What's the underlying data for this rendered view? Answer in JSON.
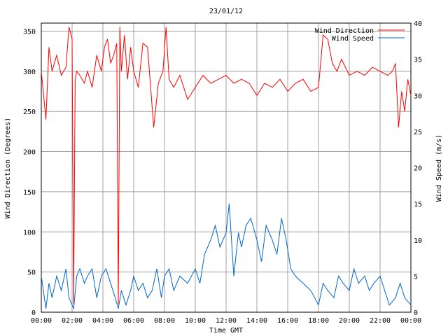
{
  "chart_data": {
    "type": "line",
    "title": "23/01/12",
    "xlabel": "Time GMT",
    "ylabel": "Wind Direction (Degrees)",
    "y2label": "Wind Speed (m/s)",
    "x_ticks": [
      "00:00",
      "02:00",
      "04:00",
      "06:00",
      "08:00",
      "10:00",
      "12:00",
      "14:00",
      "16:00",
      "18:00",
      "20:00",
      "22:00",
      "00:00"
    ],
    "xlim_hours": [
      0,
      24
    ],
    "ylim": [
      0,
      360
    ],
    "y_ticks": [
      0,
      50,
      100,
      150,
      200,
      250,
      300,
      350
    ],
    "y2lim": [
      0,
      40
    ],
    "y2_ticks": [
      0,
      5,
      10,
      15,
      20,
      25,
      30,
      35,
      40
    ],
    "grid": true,
    "legend_position": "top-right",
    "series": [
      {
        "name": "Wind Direction",
        "axis": "left",
        "color": "#ff0000",
        "x_hours": [
          0.0,
          0.3,
          0.5,
          0.7,
          1.0,
          1.3,
          1.6,
          1.8,
          2.0,
          2.1,
          2.2,
          2.3,
          2.5,
          2.8,
          3.0,
          3.3,
          3.6,
          3.9,
          4.1,
          4.3,
          4.5,
          4.7,
          4.9,
          5.0,
          5.1,
          5.2,
          5.4,
          5.6,
          5.8,
          6.0,
          6.3,
          6.6,
          6.9,
          7.1,
          7.3,
          7.6,
          7.9,
          8.1,
          8.3,
          8.6,
          9.0,
          9.5,
          10.0,
          10.5,
          11.0,
          11.5,
          12.0,
          12.5,
          13.0,
          13.5,
          14.0,
          14.5,
          15.0,
          15.5,
          16.0,
          16.5,
          17.0,
          17.5,
          18.0,
          18.3,
          18.6,
          18.9,
          19.2,
          19.5,
          20.0,
          20.5,
          21.0,
          21.5,
          22.0,
          22.5,
          22.8,
          23.0,
          23.2,
          23.4,
          23.6,
          23.8,
          24.0
        ],
        "values": [
          300,
          240,
          330,
          300,
          320,
          295,
          305,
          355,
          340,
          10,
          290,
          300,
          295,
          285,
          300,
          280,
          320,
          300,
          330,
          340,
          310,
          320,
          335,
          10,
          355,
          300,
          345,
          290,
          330,
          300,
          280,
          335,
          330,
          280,
          230,
          285,
          300,
          355,
          290,
          280,
          295,
          265,
          280,
          295,
          285,
          290,
          295,
          285,
          290,
          285,
          270,
          285,
          280,
          290,
          275,
          285,
          290,
          275,
          280,
          345,
          340,
          310,
          300,
          315,
          295,
          300,
          295,
          305,
          300,
          295,
          300,
          310,
          230,
          275,
          250,
          290,
          270
        ]
      },
      {
        "name": "Wind Speed",
        "axis": "right",
        "color": "#0066cc",
        "x_hours": [
          0.0,
          0.3,
          0.5,
          0.7,
          1.0,
          1.3,
          1.6,
          1.8,
          2.0,
          2.1,
          2.3,
          2.5,
          2.8,
          3.0,
          3.3,
          3.6,
          3.9,
          4.2,
          4.5,
          4.8,
          5.0,
          5.2,
          5.5,
          5.8,
          6.0,
          6.3,
          6.6,
          6.9,
          7.2,
          7.5,
          7.8,
          8.0,
          8.3,
          8.6,
          9.0,
          9.5,
          10.0,
          10.3,
          10.6,
          11.0,
          11.3,
          11.6,
          12.0,
          12.2,
          12.5,
          12.8,
          13.0,
          13.3,
          13.6,
          14.0,
          14.3,
          14.6,
          15.0,
          15.3,
          15.6,
          15.9,
          16.2,
          16.5,
          17.0,
          17.5,
          18.0,
          18.3,
          18.6,
          19.0,
          19.3,
          19.6,
          20.0,
          20.3,
          20.6,
          21.0,
          21.3,
          21.6,
          22.0,
          22.3,
          22.6,
          23.0,
          23.3,
          23.6,
          24.0
        ],
        "values": [
          5,
          0.5,
          4,
          2,
          5,
          3,
          6,
          2,
          1,
          0.5,
          5,
          6,
          4,
          5,
          6,
          2,
          5,
          6,
          4,
          2,
          0.5,
          3,
          1,
          3,
          5,
          3,
          4,
          2,
          3,
          6,
          2,
          5,
          6,
          3,
          5,
          4,
          6,
          4,
          8,
          10,
          12,
          9,
          11,
          15,
          5,
          11,
          9,
          12,
          13,
          10,
          7,
          12,
          10,
          8,
          13,
          10,
          6,
          5,
          4,
          3,
          1,
          4,
          3,
          2,
          5,
          4,
          3,
          6,
          4,
          5,
          3,
          4,
          5,
          3,
          1,
          2,
          4,
          2,
          1
        ]
      }
    ]
  }
}
